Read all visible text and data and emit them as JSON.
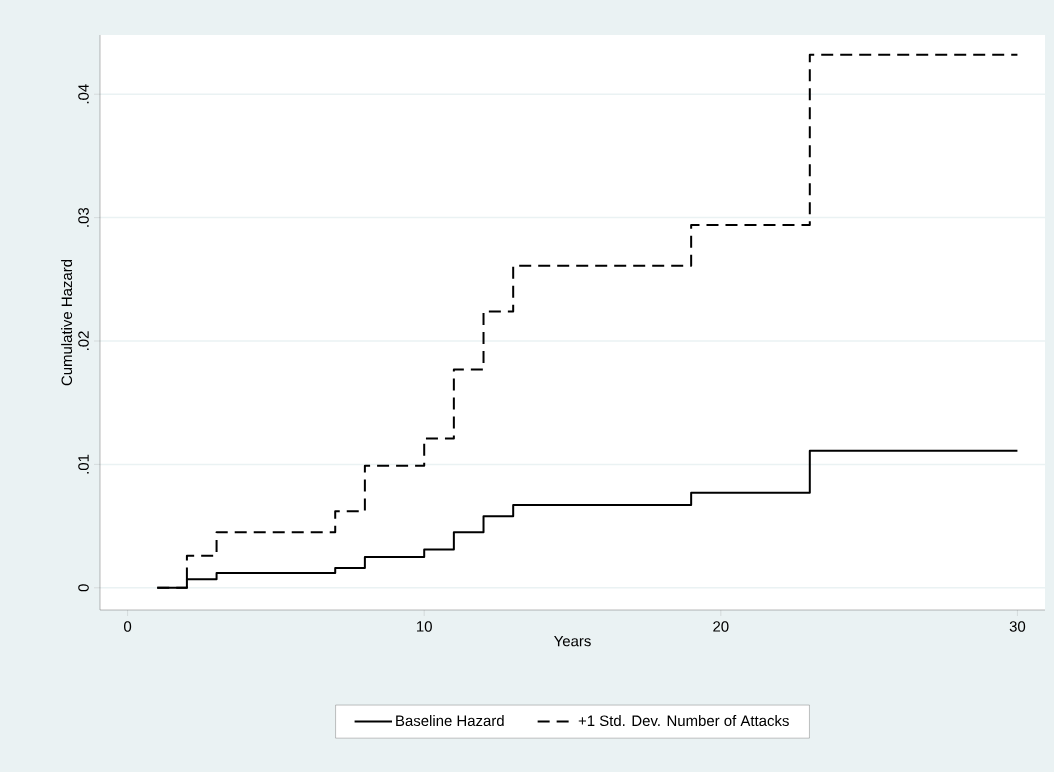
{
  "chart_data": {
    "type": "step",
    "xlabel": "Years",
    "ylabel": "Cumulative Hazard",
    "x": [
      1,
      2,
      3,
      7,
      8,
      10,
      11,
      12,
      13,
      19,
      23,
      30
    ],
    "series": [
      {
        "name": "Baseline Hazard",
        "color": "#000000",
        "line_style": "solid",
        "values": [
          0,
          0.0007,
          0.0012,
          0.0016,
          0.0025,
          0.0031,
          0.0045,
          0.0058,
          0.0067,
          0.0077,
          0.0111,
          0.0111
        ]
      },
      {
        "name": "+1 Std. Dev. Number of Attacks",
        "color": "#000000",
        "line_style": "dashed",
        "values": [
          0,
          0.0026,
          0.0045,
          0.0062,
          0.0099,
          0.0121,
          0.0177,
          0.0224,
          0.0261,
          0.0294,
          0.0432,
          0.0432
        ]
      }
    ],
    "xlim": [
      -0.93,
      30.93
    ],
    "ylim": [
      -0.0018,
      0.0448
    ],
    "xticks": [
      0,
      10,
      20,
      30
    ],
    "yticks": [
      0,
      {
        "value": 0.01,
        "label": ".01"
      },
      {
        "value": 0.02,
        "label": ".02"
      },
      {
        "value": 0.03,
        "label": ".03"
      },
      {
        "value": 0.04,
        "label": ".04"
      }
    ],
    "grid": "y",
    "legend": "bottom",
    "marker": "none"
  }
}
